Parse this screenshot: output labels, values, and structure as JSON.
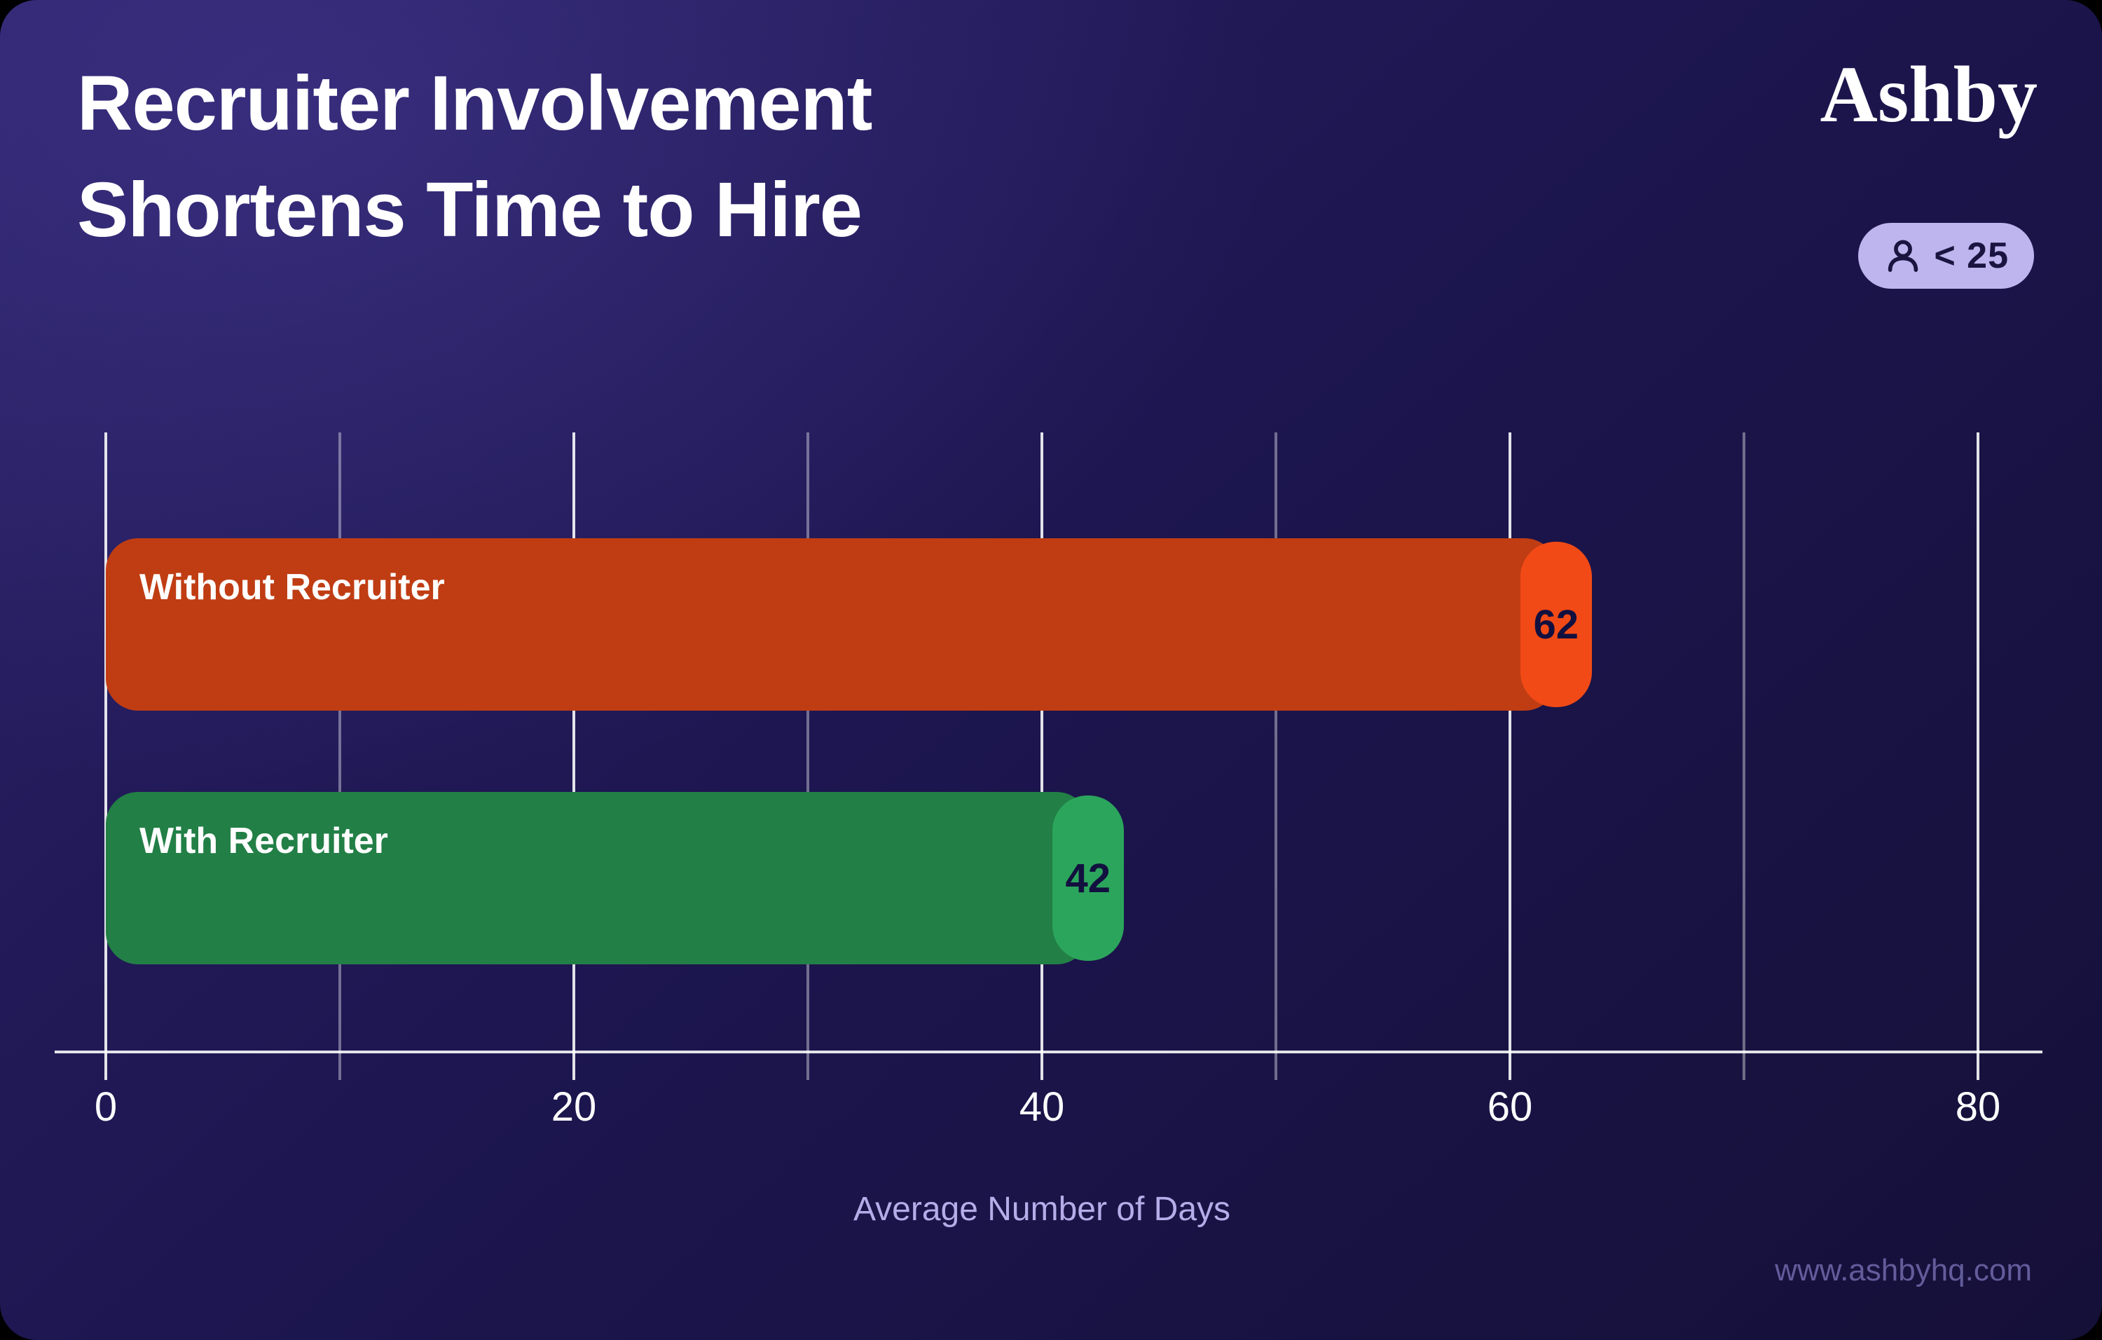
{
  "header": {
    "title_line1": "Recruiter Involvement",
    "title_line2": "Shortens Time to Hire",
    "brand": "Ashby",
    "badge_text": "< 25",
    "badge_icon": "person-icon"
  },
  "chart_data": {
    "type": "bar",
    "orientation": "horizontal",
    "title": "Recruiter Involvement Shortens Time to Hire",
    "categories": [
      "Without Recruiter",
      "With Recruiter"
    ],
    "values": [
      62,
      42
    ],
    "xlabel": "Average Number of Days",
    "ylabel": "",
    "xlim": [
      0,
      80
    ],
    "x_ticks": [
      0,
      20,
      40,
      60,
      80
    ],
    "gridline_interval": 10,
    "grid": "vertical gridlines, minor every 10, major labeled every 20",
    "legend": "none",
    "data_labels": "value shown in bright pill at end of each bar"
  },
  "footer": {
    "url": "www.ashbyhq.com"
  },
  "colors": {
    "page_background": "#000000",
    "canvas_gradient_start": "#2B2268",
    "canvas_gradient_mid": "#1D1650",
    "canvas_gradient_end": "#151038",
    "title_text": "#FFFFFF",
    "badge_background": "#BEB5EE",
    "badge_text": "#1A1441",
    "bar1_base": "#C03D13",
    "bar1_cap": "#F24A16",
    "bar2_base": "#227F46",
    "bar2_cap": "#2BA55B",
    "bar_label_text": "#FFFFFF",
    "value_text": "#12103F",
    "gridline_major": "rgba(255,255,255,0.88)",
    "gridline_minor": "rgba(255,255,255,0.38)",
    "tick_label_text": "#FFFFFF",
    "axis_label_text": "#B5ACE8",
    "footer_text": "#635C9B"
  }
}
